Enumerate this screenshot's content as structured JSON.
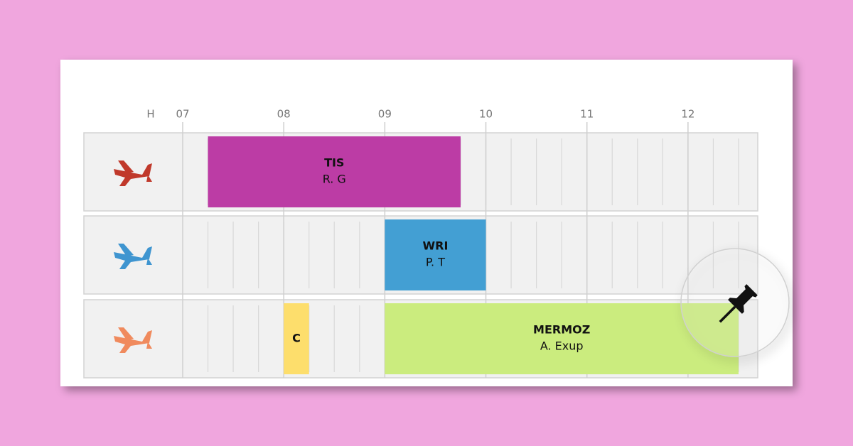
{
  "chart_data": {
    "type": "gantt",
    "row_header": "H",
    "xlim": [
      7,
      12.69
    ],
    "xticks": [
      {
        "value": 7,
        "label": "07"
      },
      {
        "value": 8,
        "label": "08"
      },
      {
        "value": 9,
        "label": "09"
      },
      10,
      11,
      12
    ],
    "minor_step": 0.25,
    "rows": [
      {
        "icon_color": "#c0392b",
        "tasks": [
          {
            "label": "TIS",
            "sublabel": "R. G",
            "start": 7.25,
            "end": 9.75,
            "color": "#bc3ca5"
          }
        ]
      },
      {
        "icon_color": "#3f95d0",
        "tasks": [
          {
            "label": "WRI",
            "sublabel": "P. T",
            "start": 9,
            "end": 10,
            "color": "#439fd3"
          }
        ]
      },
      {
        "icon_color": "#f08a5d",
        "tasks": [
          {
            "label": "C",
            "start": 8,
            "end": 8.25,
            "color": "#fdde6c"
          },
          {
            "label": "MERMOZ",
            "sublabel": "A. Exup",
            "start": 9,
            "end": 12.5,
            "color": "#cbec7e"
          }
        ]
      }
    ]
  }
}
